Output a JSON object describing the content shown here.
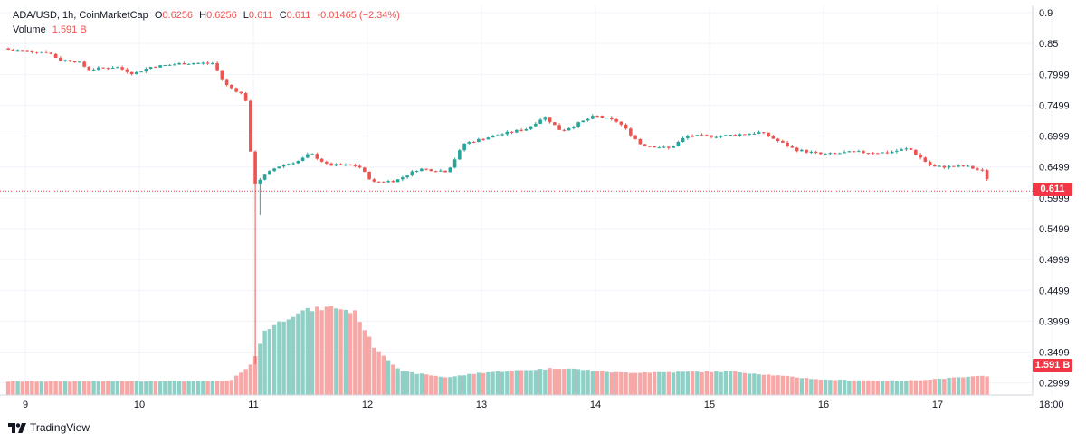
{
  "header": {
    "symbol": "ADA/USD, 1h, CoinMarketCap",
    "o_label": "O",
    "o_value": "0.6256",
    "h_label": "H",
    "h_value": "0.6256",
    "l_label": "L",
    "l_value": "0.611",
    "c_label": "C",
    "c_value": "0.611",
    "change": "-0.01465 (−2.34%)",
    "volume_label": "Volume",
    "volume_value": "1.591 B"
  },
  "footer": {
    "brand": "TradingView",
    "logo_icon": "tradingview-logo-icon"
  },
  "colors": {
    "up": "#26a69a",
    "down": "#ef5350",
    "up_volume": "#8fd0c6",
    "down_volume": "#f7a7a5",
    "price_tag": "#f23645"
  },
  "chart_data": {
    "type": "candlestick",
    "title": "ADA/USD, 1h, CoinMarketCap",
    "x_tick_labels": [
      "9",
      "10",
      "11",
      "12",
      "13",
      "14",
      "15",
      "16",
      "17",
      "18:00"
    ],
    "y_tick_labels": [
      "0.9",
      "0.85",
      "0.7999",
      "0.7499",
      "0.6999",
      "0.6499",
      "0.5999",
      "0.5499",
      "0.4999",
      "0.4499",
      "0.3999",
      "0.3499",
      "0.2999"
    ],
    "ylim": [
      0.28,
      0.91
    ],
    "last_price": "0.611",
    "last_volume": "1.591 B",
    "close_path": [
      {
        "day": 8.85,
        "close": 0.84
      },
      {
        "day": 9.2,
        "close": 0.836
      },
      {
        "day": 9.3,
        "close": 0.823
      },
      {
        "day": 9.45,
        "close": 0.822
      },
      {
        "day": 9.55,
        "close": 0.808
      },
      {
        "day": 9.8,
        "close": 0.812
      },
      {
        "day": 9.95,
        "close": 0.801
      },
      {
        "day": 10.1,
        "close": 0.812
      },
      {
        "day": 10.4,
        "close": 0.818
      },
      {
        "day": 10.65,
        "close": 0.818
      },
      {
        "day": 10.75,
        "close": 0.784
      },
      {
        "day": 10.93,
        "close": 0.765
      },
      {
        "day": 11.0,
        "close": 0.622
      },
      {
        "day": 11.2,
        "close": 0.65
      },
      {
        "day": 11.4,
        "close": 0.66
      },
      {
        "day": 11.5,
        "close": 0.672
      },
      {
        "day": 11.65,
        "close": 0.653
      },
      {
        "day": 11.92,
        "close": 0.652
      },
      {
        "day": 12.05,
        "close": 0.625
      },
      {
        "day": 12.25,
        "close": 0.628
      },
      {
        "day": 12.45,
        "close": 0.647
      },
      {
        "day": 12.7,
        "close": 0.643
      },
      {
        "day": 12.85,
        "close": 0.688
      },
      {
        "day": 13.1,
        "close": 0.7
      },
      {
        "day": 13.4,
        "close": 0.712
      },
      {
        "day": 13.55,
        "close": 0.732
      },
      {
        "day": 13.7,
        "close": 0.708
      },
      {
        "day": 13.9,
        "close": 0.725
      },
      {
        "day": 14.0,
        "close": 0.733
      },
      {
        "day": 14.2,
        "close": 0.723
      },
      {
        "day": 14.4,
        "close": 0.686
      },
      {
        "day": 14.65,
        "close": 0.68
      },
      {
        "day": 14.8,
        "close": 0.7
      },
      {
        "day": 15.1,
        "close": 0.7
      },
      {
        "day": 15.45,
        "close": 0.706
      },
      {
        "day": 15.75,
        "close": 0.678
      },
      {
        "day": 16.0,
        "close": 0.67
      },
      {
        "day": 16.25,
        "close": 0.674
      },
      {
        "day": 16.55,
        "close": 0.673
      },
      {
        "day": 16.75,
        "close": 0.68
      },
      {
        "day": 16.95,
        "close": 0.65
      },
      {
        "day": 17.25,
        "close": 0.651
      },
      {
        "day": 17.4,
        "close": 0.643
      },
      {
        "day": 17.45,
        "close": 0.626
      },
      {
        "day": 17.47,
        "close": 0.611
      }
    ],
    "volume_path_billions": [
      {
        "day": 8.85,
        "volume": 1.15
      },
      {
        "day": 10.8,
        "volume": 1.2
      },
      {
        "day": 11.0,
        "volume": 2.8
      },
      {
        "day": 11.1,
        "volume": 5.5
      },
      {
        "day": 11.4,
        "volume": 7.1
      },
      {
        "day": 11.7,
        "volume": 7.5
      },
      {
        "day": 11.9,
        "volume": 7.0
      },
      {
        "day": 12.05,
        "volume": 4.2
      },
      {
        "day": 12.3,
        "volume": 2.0
      },
      {
        "day": 12.7,
        "volume": 1.5
      },
      {
        "day": 13.0,
        "volume": 1.9
      },
      {
        "day": 13.7,
        "volume": 2.3
      },
      {
        "day": 14.2,
        "volume": 1.9
      },
      {
        "day": 15.2,
        "volume": 2.0
      },
      {
        "day": 16.0,
        "volume": 1.3
      },
      {
        "day": 16.7,
        "volume": 1.2
      },
      {
        "day": 17.47,
        "volume": 1.65
      }
    ],
    "volume_ylim": [
      0,
      9.5
    ]
  }
}
